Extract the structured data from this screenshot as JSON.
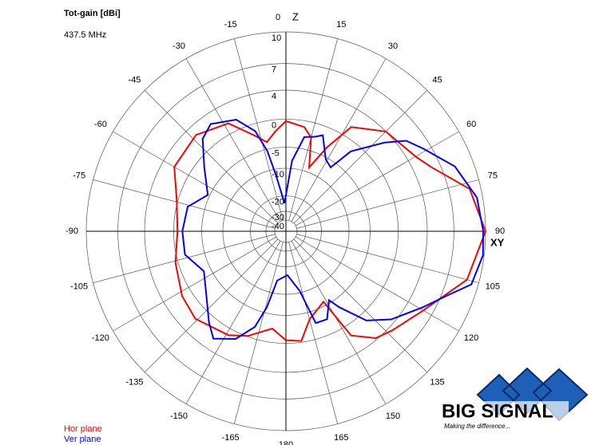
{
  "chart_data": {
    "type": "polar",
    "title": "Tot-gain [dBi]",
    "subtitle": "437.5 MHz",
    "vertical_axis_label": "Z",
    "horizontal_axis_label": "XY",
    "radial_scale": "log",
    "rlim": [
      -40,
      10
    ],
    "rticks": [
      10,
      7,
      4,
      0,
      -5,
      -10,
      -20,
      -30,
      -40
    ],
    "thetaticks": [
      0,
      15,
      30,
      45,
      60,
      75,
      90,
      105,
      120,
      135,
      150,
      165,
      180,
      -165,
      -150,
      -135,
      -120,
      -105,
      -90,
      -75,
      -60,
      -45,
      -30,
      -15
    ],
    "series": [
      {
        "name": "Hor plane",
        "color": "#ff0000",
        "theta": [
          -180,
          -172,
          -160,
          -151,
          -134,
          -122,
          -106,
          -90,
          -74,
          -60,
          -43,
          -28,
          -18,
          -12,
          -6,
          0,
          10,
          15,
          20,
          26,
          32,
          45,
          60,
          66,
          77,
          90,
          105,
          120,
          133,
          140,
          148,
          152,
          165,
          172
        ],
        "values": [
          -0.5,
          -2.3,
          -0.1,
          1,
          2,
          1.5,
          0.4,
          -0.6,
          0.2,
          2.4,
          2.8,
          1.5,
          -1.9,
          -3.6,
          -1.9,
          -0.3,
          -1,
          -2.5,
          -8.7,
          -3.2,
          1.6,
          4,
          5,
          6,
          9,
          10,
          8.9,
          6,
          4.5,
          3.8,
          1.6,
          -5.9,
          -3.6,
          -0.2
        ]
      },
      {
        "name": "Ver plane",
        "color": "#0000ff",
        "theta": [
          -180,
          -170,
          -166,
          -162,
          -155,
          -146,
          -140,
          -129,
          -116,
          -103,
          -90,
          -76,
          -65,
          -52,
          -42,
          -35,
          -24,
          -17,
          -13,
          -10,
          -3,
          5,
          11,
          17,
          21,
          29,
          35,
          39,
          48,
          53,
          59,
          69,
          80,
          90,
          97,
          106,
          112,
          119,
          130,
          138,
          145,
          148,
          155,
          162,
          164,
          167,
          178
        ],
        "values": [
          -16,
          -14,
          -6.3,
          -1.9,
          1,
          2.5,
          1.1,
          -1.6,
          -3.6,
          -1.4,
          -1.4,
          -1.8,
          -4.6,
          -1.4,
          1.8,
          2.7,
          1.5,
          -1.2,
          -5.4,
          -11.9,
          -24,
          -8,
          -2.7,
          -2.2,
          -1.5,
          -5.4,
          -6.3,
          -1.5,
          2.9,
          5.1,
          6.2,
          8.3,
          9.5,
          9.8,
          9.9,
          9.4,
          7.5,
          5.8,
          3.5,
          1.2,
          -3.3,
          -5.6,
          -2.5,
          -2.6,
          -6.1,
          -10.5,
          -16.3
        ]
      }
    ]
  },
  "logo": {
    "name": "BIG SIGNAL",
    "tagline": "Making the difference..."
  }
}
